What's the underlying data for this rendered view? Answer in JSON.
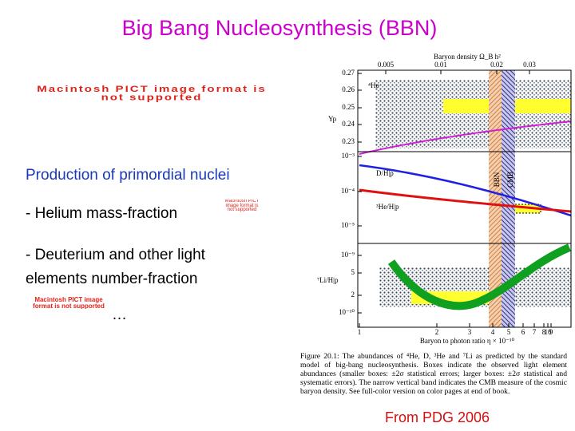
{
  "title": "Big Bang Nucleosynthesis (BBN)",
  "placeholders": [
    "Macintosh PICT image format is not supported",
    "Macintosh PICT image format is not supported",
    "Macintosh PICT image format is not supported"
  ],
  "body": {
    "heading": "Production of primordial nuclei",
    "items": [
      "- Helium mass-fraction",
      "- Deuterium and other light elements number-fraction"
    ],
    "ellipsis": "…"
  },
  "figure": {
    "top_axis_label": "Baryon density Ω_B h²",
    "top_ticks": [
      "0.005",
      "0.01",
      "0.02",
      "0.03"
    ],
    "bottom_axis_label": "Baryon to photon ratio η × 10⁻¹⁰",
    "bottom_ticks": [
      "1",
      "2",
      "3",
      "4",
      "5",
      "6",
      "7",
      "8",
      "9",
      "10"
    ],
    "panels": [
      {
        "labels": [
          "⁴He",
          "Yp"
        ],
        "ticks": [
          "0.27",
          "0.26",
          "0.25",
          "0.24",
          "0.23"
        ]
      },
      {
        "labels": [
          "D/H|p",
          "³He/H|p"
        ],
        "ticks": [
          "10⁻³",
          "10⁻⁴",
          "10⁻⁵"
        ]
      },
      {
        "labels": [
          "⁷Li/H|p"
        ],
        "ticks": [
          "10⁻⁹",
          "5",
          "2",
          "10⁻¹⁰"
        ]
      }
    ],
    "band_labels": [
      "BBN",
      "CMB"
    ]
  },
  "caption": "Figure 20.1: The abundances of ⁴He, D, ³He and ⁷Li as predicted by the standard model of big-bang nucleosynthesis. Boxes indicate the observed light element abundances (smaller boxes: ±2σ statistical errors; larger boxes: ±2σ statistical and systematic errors). The narrow vertical band indicates the CMB measure of the cosmic baryon density. See full-color version on color pages at end of book.",
  "source": "From PDG 2006"
}
